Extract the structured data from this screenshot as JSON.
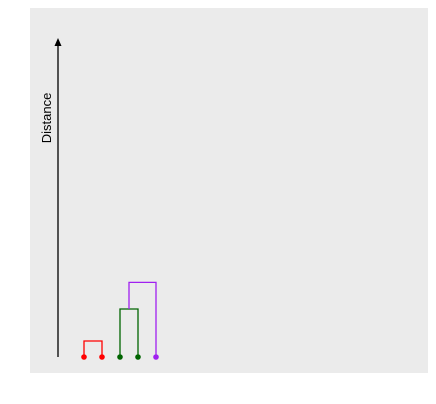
{
  "chart_data": {
    "type": "dendrogram",
    "axis": {
      "label": "Distance",
      "direction": "up"
    },
    "leaves": [
      {
        "id": "leaf-1",
        "color": "#ff0000"
      },
      {
        "id": "leaf-2",
        "color": "#ff0000"
      },
      {
        "id": "leaf-3",
        "color": "#006400"
      },
      {
        "id": "leaf-4",
        "color": "#006400"
      },
      {
        "id": "leaf-5",
        "color": "#a020f0"
      }
    ],
    "merges": [
      {
        "left": "leaf-1",
        "right": "leaf-2",
        "height": 0.9,
        "color": "#ff0000"
      },
      {
        "left": "leaf-3",
        "right": "leaf-4",
        "height": 2.7,
        "color": "#006400"
      },
      {
        "left": "cluster-green",
        "right": "leaf-5",
        "height": 4.2,
        "color": "#a020f0"
      }
    ],
    "height_max": 17.5,
    "grid": false
  },
  "colors": {
    "panel_background": "#ebebeb",
    "axis": "#000000"
  }
}
